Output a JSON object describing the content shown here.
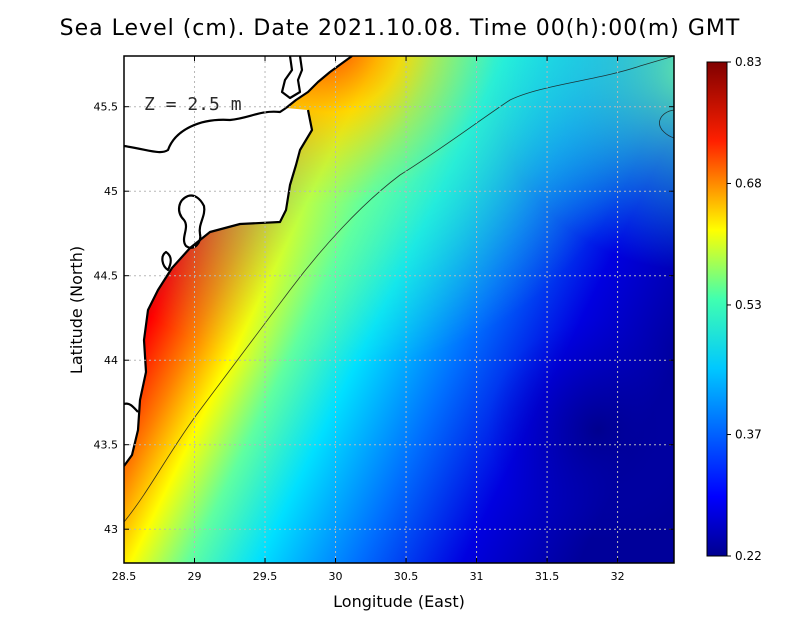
{
  "title": "Sea Level (cm). Date 2021.10.08. Time 00(h):00(m) GMT",
  "annotation": "Z = 2.5 m",
  "axes": {
    "xlabel": "Longitude (East)",
    "ylabel": "Latitude (North)",
    "xlim": [
      28.5,
      32.4
    ],
    "ylim": [
      42.8,
      45.8
    ],
    "xticks": [
      "28.5",
      "29",
      "29.5",
      "30",
      "30.5",
      "31",
      "31.5",
      "32"
    ],
    "yticks": [
      "43",
      "43.5",
      "44",
      "44.5",
      "45",
      "45.5"
    ]
  },
  "colorbar": {
    "min": 0.22,
    "max": 0.83,
    "tick_labels": [
      "0.83",
      "0.68",
      "0.53",
      "0.37",
      "0.22"
    ],
    "colormap": [
      "#00008f",
      "#0000ff",
      "#00ffff",
      "#ffff00",
      "#ff0000",
      "#800000"
    ]
  },
  "colors": {
    "land": "#ffffff",
    "coastline": "#000000",
    "grid": "#b8b8b8"
  },
  "chart_data": {
    "type": "heatmap",
    "variable": "Sea Level",
    "date": "2021.10.08",
    "time": "00(h):00(m) GMT",
    "range": [
      0.22,
      0.83
    ],
    "pattern": "high sea level along the western coast (max ~0.83 near 28.7E 44.3N), decreasing offshore to a minimum ~0.22 near 31.8E 43.6N"
  }
}
